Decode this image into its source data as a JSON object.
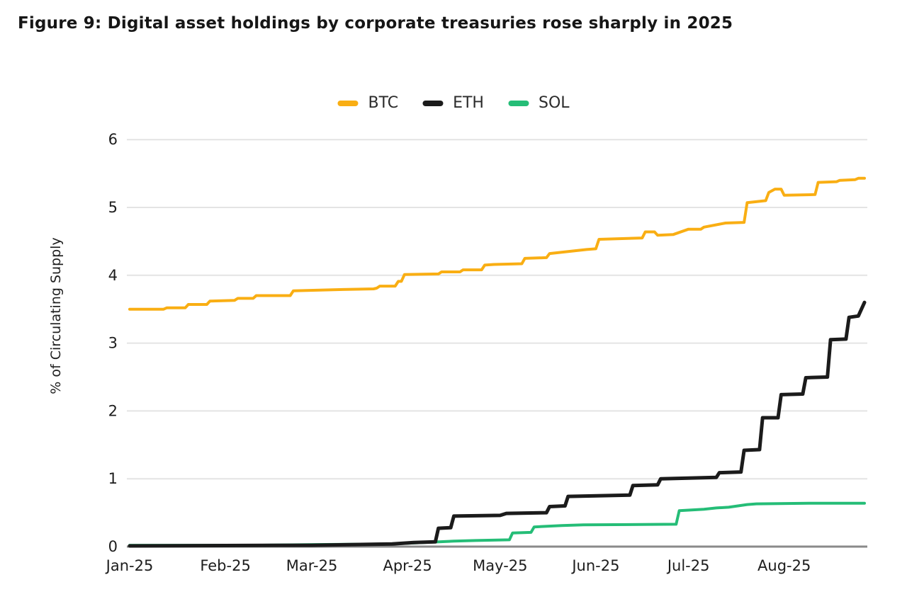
{
  "title": "Figure 9: Digital asset holdings by corporate treasuries rose sharply in 2025",
  "chart_data": {
    "type": "line",
    "title": "Figure 9: Digital asset holdings by corporate treasuries rose sharply in 2025",
    "xlabel": "",
    "ylabel": "% of Circulating Supply",
    "ylim": [
      0,
      6
    ],
    "y_ticks": [
      0,
      1,
      2,
      3,
      4,
      5,
      6
    ],
    "grid": "horizontal",
    "legend_position": "top",
    "line_style": "step",
    "x_unit": "days-since-Jan-1-2025",
    "x_domain_days": [
      0,
      238
    ],
    "x_ticks": [
      {
        "label": "Jan-25",
        "day": 0
      },
      {
        "label": "Feb-25",
        "day": 31
      },
      {
        "label": "Mar-25",
        "day": 59
      },
      {
        "label": "Apr-25",
        "day": 90
      },
      {
        "label": "May-25",
        "day": 120
      },
      {
        "label": "Jun-25",
        "day": 151
      },
      {
        "label": "Jul-25",
        "day": 181
      },
      {
        "label": "Aug-25",
        "day": 212
      }
    ],
    "colors": {
      "grid": "#e4e4e4",
      "axis_baseline": "#8a8a8a",
      "tick_text": "#1d1d1d"
    },
    "series": [
      {
        "name": "BTC",
        "color": "#F9AE13",
        "points": [
          [
            0,
            3.5
          ],
          [
            11,
            3.5
          ],
          [
            12,
            3.52
          ],
          [
            18,
            3.52
          ],
          [
            19,
            3.57
          ],
          [
            25,
            3.57
          ],
          [
            26,
            3.62
          ],
          [
            34,
            3.63
          ],
          [
            35,
            3.66
          ],
          [
            40,
            3.66
          ],
          [
            41,
            3.7
          ],
          [
            52,
            3.7
          ],
          [
            53,
            3.77
          ],
          [
            69,
            3.79
          ],
          [
            79,
            3.8
          ],
          [
            80,
            3.81
          ],
          [
            81,
            3.84
          ],
          [
            86,
            3.84
          ],
          [
            87,
            3.91
          ],
          [
            88,
            3.91
          ],
          [
            89,
            4.01
          ],
          [
            100,
            4.02
          ],
          [
            101,
            4.05
          ],
          [
            107,
            4.05
          ],
          [
            108,
            4.08
          ],
          [
            114,
            4.08
          ],
          [
            115,
            4.15
          ],
          [
            118,
            4.16
          ],
          [
            127,
            4.17
          ],
          [
            128,
            4.25
          ],
          [
            135,
            4.26
          ],
          [
            136,
            4.32
          ],
          [
            148,
            4.38
          ],
          [
            151,
            4.39
          ],
          [
            152,
            4.53
          ],
          [
            166,
            4.55
          ],
          [
            167,
            4.64
          ],
          [
            170,
            4.64
          ],
          [
            171,
            4.59
          ],
          [
            176,
            4.6
          ],
          [
            181,
            4.68
          ],
          [
            185,
            4.68
          ],
          [
            186,
            4.71
          ],
          [
            193,
            4.77
          ],
          [
            199,
            4.78
          ],
          [
            200,
            5.07
          ],
          [
            206,
            5.1
          ],
          [
            207,
            5.22
          ],
          [
            209,
            5.27
          ],
          [
            211,
            5.27
          ],
          [
            212,
            5.18
          ],
          [
            222,
            5.19
          ],
          [
            223,
            5.37
          ],
          [
            229,
            5.38
          ],
          [
            230,
            5.4
          ],
          [
            235,
            5.41
          ],
          [
            236,
            5.43
          ],
          [
            238,
            5.43
          ]
        ]
      },
      {
        "name": "ETH",
        "color": "#1B1B1B",
        "points": [
          [
            0,
            0.01
          ],
          [
            59,
            0.02
          ],
          [
            85,
            0.04
          ],
          [
            92,
            0.06
          ],
          [
            99,
            0.07
          ],
          [
            100,
            0.27
          ],
          [
            104,
            0.28
          ],
          [
            105,
            0.45
          ],
          [
            120,
            0.46
          ],
          [
            122,
            0.49
          ],
          [
            135,
            0.5
          ],
          [
            136,
            0.59
          ],
          [
            141,
            0.6
          ],
          [
            142,
            0.74
          ],
          [
            162,
            0.76
          ],
          [
            163,
            0.9
          ],
          [
            171,
            0.91
          ],
          [
            172,
            1.0
          ],
          [
            190,
            1.02
          ],
          [
            191,
            1.09
          ],
          [
            198,
            1.1
          ],
          [
            199,
            1.42
          ],
          [
            204,
            1.43
          ],
          [
            205,
            1.9
          ],
          [
            210,
            1.9
          ],
          [
            211,
            2.24
          ],
          [
            218,
            2.25
          ],
          [
            219,
            2.49
          ],
          [
            226,
            2.5
          ],
          [
            227,
            3.05
          ],
          [
            232,
            3.06
          ],
          [
            233,
            3.38
          ],
          [
            236,
            3.4
          ],
          [
            238,
            3.6
          ]
        ]
      },
      {
        "name": "SOL",
        "color": "#25BD77",
        "points": [
          [
            0,
            0.02
          ],
          [
            40,
            0.02
          ],
          [
            60,
            0.03
          ],
          [
            85,
            0.04
          ],
          [
            95,
            0.06
          ],
          [
            105,
            0.08
          ],
          [
            112,
            0.09
          ],
          [
            123,
            0.1
          ],
          [
            124,
            0.2
          ],
          [
            130,
            0.21
          ],
          [
            131,
            0.29
          ],
          [
            140,
            0.31
          ],
          [
            147,
            0.32
          ],
          [
            177,
            0.33
          ],
          [
            178,
            0.53
          ],
          [
            186,
            0.55
          ],
          [
            190,
            0.57
          ],
          [
            194,
            0.58
          ],
          [
            197,
            0.6
          ],
          [
            200,
            0.62
          ],
          [
            203,
            0.63
          ],
          [
            220,
            0.64
          ],
          [
            238,
            0.64
          ]
        ]
      }
    ]
  }
}
